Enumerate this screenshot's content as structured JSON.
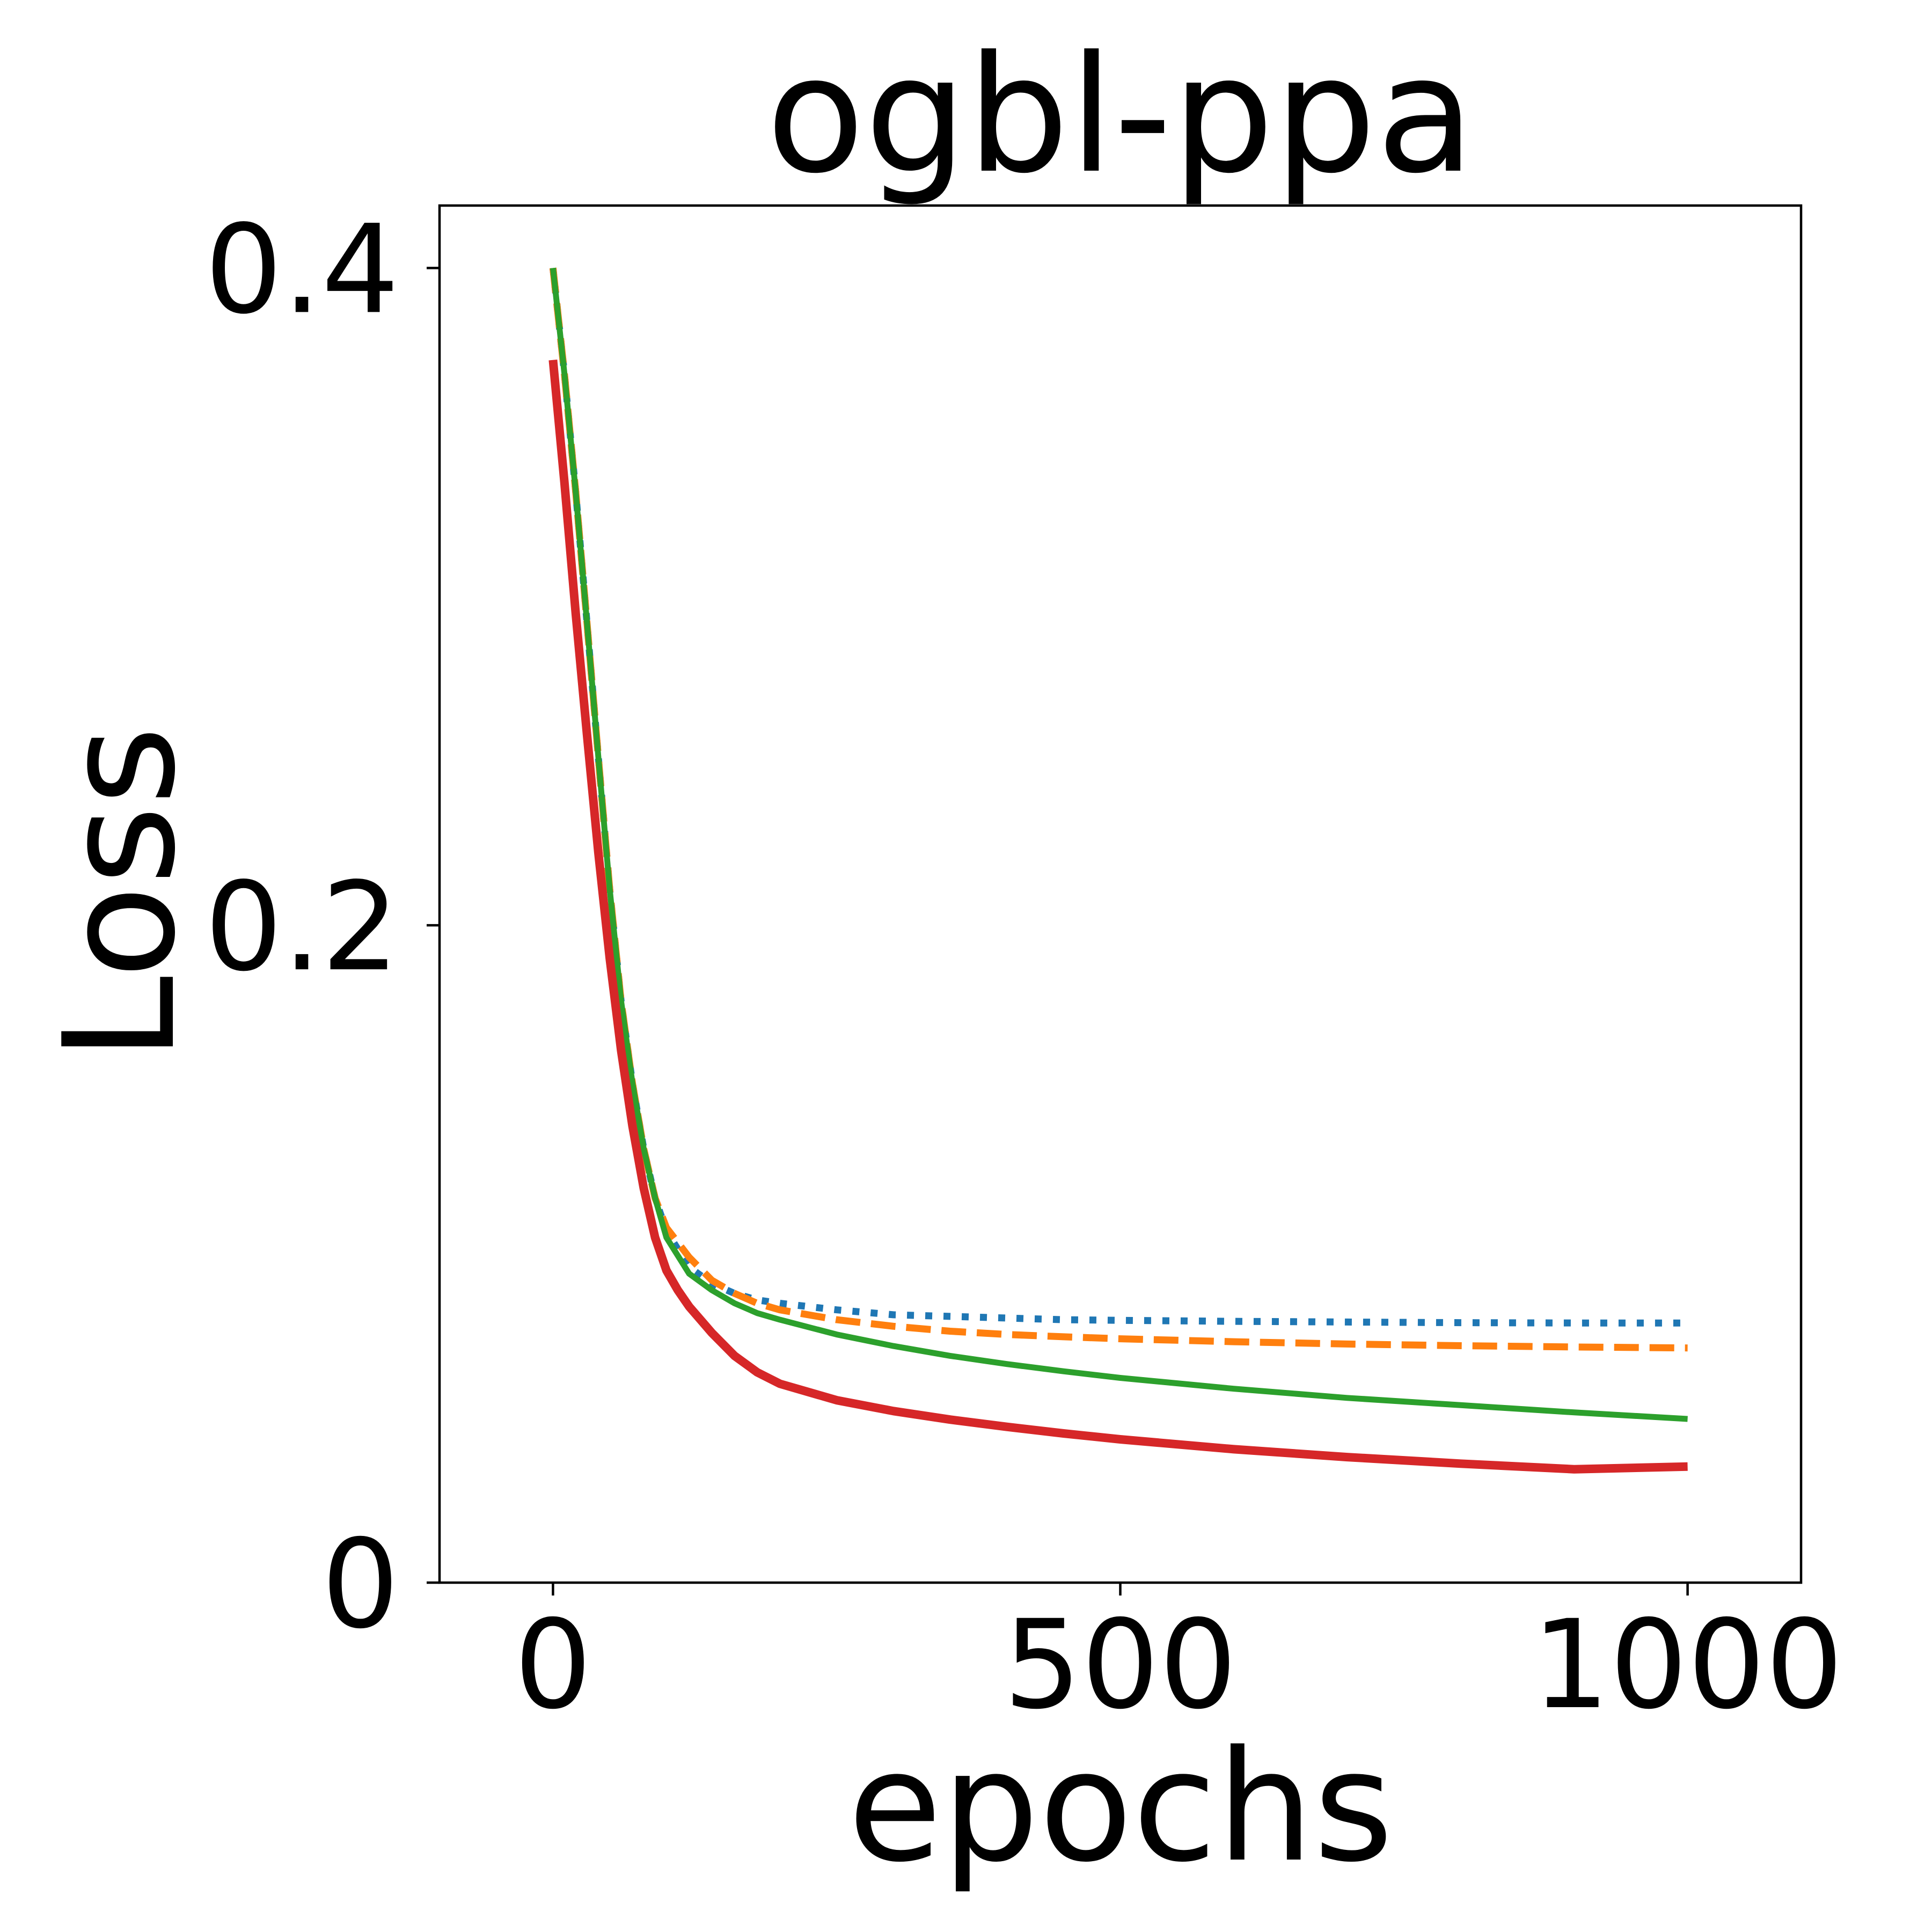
{
  "chart_data": {
    "type": "line",
    "title": "ogbl-ppa",
    "xlabel": "epochs",
    "ylabel": "Loss",
    "xlim": [
      -100,
      1100
    ],
    "ylim": [
      0,
      0.419
    ],
    "xticks": [
      0,
      500,
      1000
    ],
    "xtick_labels": [
      "0",
      "500",
      "1000"
    ],
    "yticks": [
      0,
      0.2,
      0.4
    ],
    "ytick_labels": [
      "0",
      "0.2",
      "0.4"
    ],
    "grid": false,
    "legend": "none",
    "series": [
      {
        "color": "#1f77b4",
        "style": "dotted",
        "x": [
          0,
          10,
          20,
          30,
          40,
          50,
          60,
          70,
          80,
          90,
          100,
          120,
          140,
          160,
          180,
          200,
          250,
          300,
          350,
          400,
          450,
          500,
          600,
          700,
          800,
          900,
          1000
        ],
        "y": [
          0.4,
          0.368,
          0.332,
          0.292,
          0.251,
          0.211,
          0.177,
          0.152,
          0.132,
          0.117,
          0.107,
          0.096,
          0.091,
          0.088,
          0.086,
          0.085,
          0.083,
          0.0815,
          0.081,
          0.0805,
          0.08,
          0.0798,
          0.0795,
          0.0793,
          0.0791,
          0.079,
          0.079
        ]
      },
      {
        "color": "#ff7f0e",
        "style": "dashed",
        "x": [
          0,
          10,
          20,
          30,
          40,
          50,
          60,
          70,
          80,
          90,
          100,
          120,
          140,
          160,
          180,
          200,
          250,
          300,
          350,
          400,
          450,
          500,
          600,
          700,
          800,
          900,
          1000
        ],
        "y": [
          0.4,
          0.368,
          0.332,
          0.292,
          0.251,
          0.211,
          0.177,
          0.152,
          0.132,
          0.117,
          0.108,
          0.099,
          0.092,
          0.088,
          0.085,
          0.083,
          0.08,
          0.078,
          0.0765,
          0.0755,
          0.0748,
          0.0742,
          0.0733,
          0.0726,
          0.0721,
          0.0717,
          0.0714
        ]
      },
      {
        "color": "#2ca02c",
        "style": "solid",
        "x": [
          0,
          10,
          20,
          30,
          40,
          50,
          60,
          70,
          80,
          90,
          100,
          120,
          140,
          160,
          180,
          200,
          250,
          300,
          350,
          400,
          450,
          500,
          600,
          700,
          800,
          900,
          1000
        ],
        "y": [
          0.4,
          0.368,
          0.332,
          0.292,
          0.251,
          0.211,
          0.177,
          0.152,
          0.132,
          0.117,
          0.105,
          0.094,
          0.089,
          0.085,
          0.082,
          0.08,
          0.0755,
          0.072,
          0.069,
          0.0665,
          0.0643,
          0.0623,
          0.059,
          0.0562,
          0.054,
          0.0518,
          0.0498
        ]
      },
      {
        "color": "#d62728",
        "style": "solid",
        "x": [
          0,
          10,
          20,
          30,
          40,
          50,
          60,
          70,
          80,
          90,
          100,
          110,
          120,
          130,
          140,
          160,
          180,
          200,
          250,
          300,
          350,
          400,
          450,
          500,
          600,
          700,
          800,
          900,
          1000
        ],
        "y": [
          0.372,
          0.335,
          0.295,
          0.258,
          0.222,
          0.19,
          0.162,
          0.139,
          0.12,
          0.105,
          0.095,
          0.089,
          0.084,
          0.08,
          0.076,
          0.069,
          0.064,
          0.0605,
          0.0555,
          0.0522,
          0.0496,
          0.0474,
          0.0454,
          0.0436,
          0.0406,
          0.0382,
          0.0362,
          0.0345,
          0.0353
        ]
      }
    ]
  }
}
